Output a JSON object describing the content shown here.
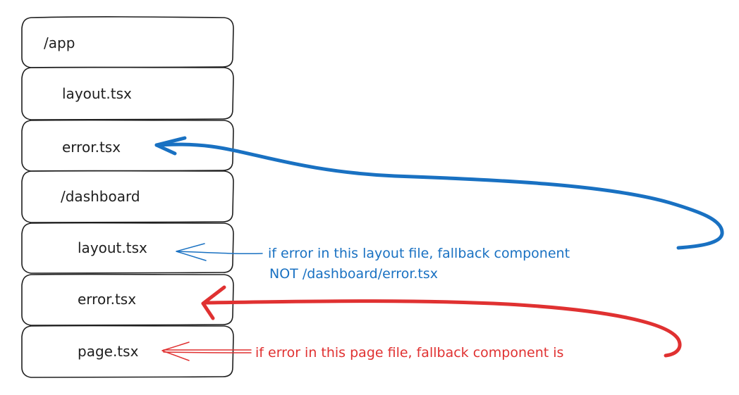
{
  "boxes": [
    {
      "label": "/app"
    },
    {
      "label": "layout.tsx"
    },
    {
      "label": "error.tsx"
    },
    {
      "label": "/dashboard"
    },
    {
      "label": "layout.tsx"
    },
    {
      "label": "error.tsx"
    },
    {
      "label": "page.tsx"
    }
  ],
  "annotations": {
    "blue": {
      "line1": "if error in this layout file, fallback component",
      "line2": "NOT /dashboard/error.tsx",
      "color": "#1971c2"
    },
    "red": {
      "line1": "if error in this page file, fallback component is",
      "color": "#e03131"
    }
  }
}
